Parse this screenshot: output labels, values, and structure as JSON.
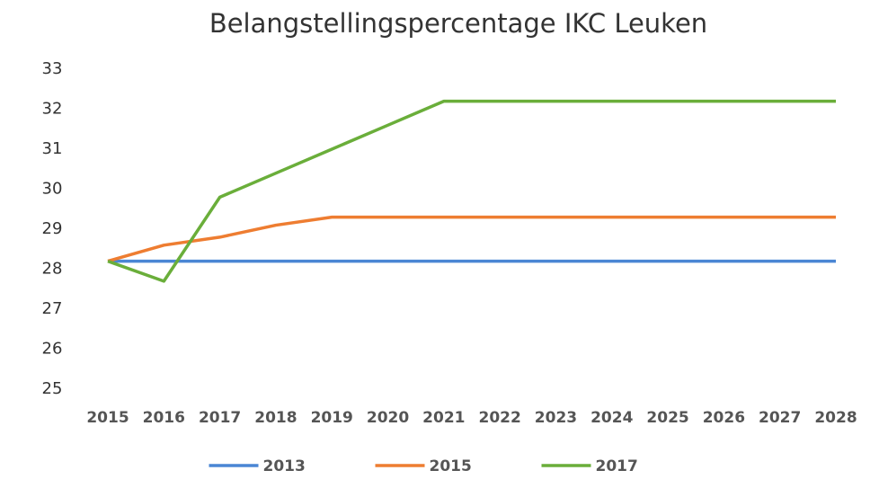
{
  "chart_data": {
    "type": "line",
    "title": "Belangstellingspercentage IKC Leuken",
    "categories": [
      "2015",
      "2016",
      "2017",
      "2018",
      "2019",
      "2020",
      "2021",
      "2022",
      "2023",
      "2024",
      "2025",
      "2026",
      "2027",
      "2028"
    ],
    "series": [
      {
        "name": "2013",
        "color": "#4a86d4",
        "values": [
          28.2,
          28.2,
          28.2,
          28.2,
          28.2,
          28.2,
          28.2,
          28.2,
          28.2,
          28.2,
          28.2,
          28.2,
          28.2,
          28.2
        ]
      },
      {
        "name": "2015",
        "color": "#ee7d31",
        "values": [
          28.2,
          28.6,
          28.8,
          29.1,
          29.3,
          29.3,
          29.3,
          29.3,
          29.3,
          29.3,
          29.3,
          29.3,
          29.3,
          29.3
        ]
      },
      {
        "name": "2017",
        "color": "#6aae3a",
        "values": [
          28.2,
          27.7,
          29.8,
          30.4,
          31.0,
          31.6,
          32.2,
          32.2,
          32.2,
          32.2,
          32.2,
          32.2,
          32.2,
          32.2
        ]
      }
    ],
    "ylim": [
      25,
      33
    ],
    "yticks": [
      25,
      26,
      27,
      28,
      29,
      30,
      31,
      32,
      33
    ],
    "grid": false,
    "legend": "bottom"
  }
}
